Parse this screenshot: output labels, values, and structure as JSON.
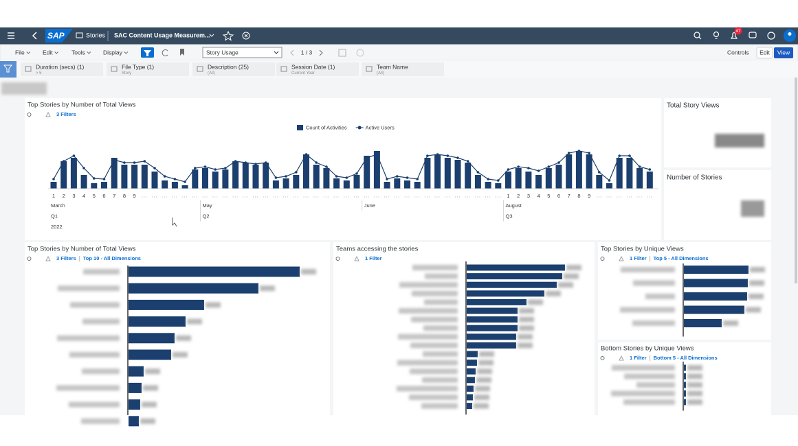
{
  "header": {
    "brand": "SAP",
    "app": "Stories",
    "title": "SAC Content Usage Measurem...",
    "notifications": 47
  },
  "toolbar": {
    "menus": [
      "File",
      "Edit",
      "Tools",
      "Display"
    ],
    "page_select": "Story Usage",
    "page_indicator": "1 / 3",
    "controls": "Controls",
    "edit": "Edit",
    "view": "View"
  },
  "filters": [
    {
      "name": "Duration (secs) (1)",
      "value": "> 5"
    },
    {
      "name": "File Type (1)",
      "value": "Story"
    },
    {
      "name": "Description (25)",
      "value": "(All)"
    },
    {
      "name": "Session Date (1)",
      "value": "Current Year"
    },
    {
      "name": "Team Name",
      "value": "(All)"
    }
  ],
  "kpis": [
    {
      "title": "Total Story Views"
    },
    {
      "title": "Number of Stories"
    }
  ],
  "chart_data": [
    {
      "type": "combo",
      "title": "Top Stories by Number of Total Views",
      "filter_links": [
        "3 Filters"
      ],
      "legend": "top",
      "categories": [
        "1",
        "2",
        "3",
        "4",
        "5",
        "6",
        "7",
        "8",
        "9",
        null,
        null,
        null,
        null,
        null,
        null,
        null,
        null,
        null,
        null,
        null,
        null,
        null,
        null,
        null,
        null,
        null,
        null,
        null,
        null,
        null,
        null,
        null,
        null,
        null,
        null,
        null,
        null,
        null,
        null,
        null,
        null,
        null,
        null,
        null,
        null,
        "1",
        "2",
        "3",
        "4",
        "5",
        "6",
        "7",
        "8",
        "9",
        null,
        null,
        null,
        null,
        null,
        null
      ],
      "months": [
        "March",
        null,
        null,
        null,
        null,
        null,
        null,
        null,
        null,
        null,
        null,
        null,
        null,
        null,
        null,
        "May",
        null,
        null,
        null,
        null,
        null,
        null,
        null,
        null,
        null,
        null,
        null,
        null,
        null,
        null,
        null,
        "June",
        null,
        null,
        null,
        null,
        null,
        null,
        null,
        null,
        null,
        null,
        null,
        null,
        null,
        "August",
        null,
        null,
        null,
        null,
        null,
        null,
        null,
        null,
        null,
        null,
        null,
        null,
        null,
        null
      ],
      "quarters": [
        "Q1",
        null,
        null,
        null,
        null,
        null,
        null,
        null,
        null,
        null,
        null,
        null,
        null,
        null,
        null,
        "Q2",
        null,
        null,
        null,
        null,
        null,
        null,
        null,
        null,
        null,
        null,
        null,
        null,
        null,
        null,
        null,
        null,
        null,
        null,
        null,
        null,
        null,
        null,
        null,
        null,
        null,
        null,
        null,
        null,
        null,
        "Q3",
        null,
        null,
        null,
        null,
        null,
        null,
        null,
        null,
        null,
        null,
        null,
        null,
        null,
        null
      ],
      "years": [
        "2022",
        null,
        null,
        null,
        null,
        null,
        null,
        null,
        null,
        null,
        null,
        null,
        null,
        null,
        null,
        null,
        null,
        null,
        null,
        null,
        null,
        null,
        null,
        null,
        null,
        null,
        null,
        null,
        null,
        null,
        null,
        null,
        null,
        null,
        null,
        null,
        null,
        null,
        null,
        null,
        null,
        null,
        null,
        null,
        null,
        null,
        null,
        null,
        null,
        null,
        null,
        null,
        null,
        null,
        null,
        null,
        null,
        null,
        null,
        null
      ],
      "series": [
        {
          "name": "Count of Activities",
          "type": "bar",
          "color": "#1b3f6e",
          "values": [
            10,
            40,
            45,
            20,
            8,
            10,
            45,
            35,
            35,
            35,
            25,
            12,
            10,
            5,
            28,
            30,
            25,
            28,
            40,
            38,
            35,
            38,
            12,
            15,
            20,
            50,
            35,
            30,
            15,
            12,
            20,
            48,
            55,
            10,
            15,
            12,
            10,
            45,
            50,
            45,
            42,
            38,
            20,
            10,
            8,
            25,
            30,
            25,
            20,
            30,
            35,
            50,
            55,
            50,
            20,
            8,
            45,
            45,
            30,
            25
          ]
        },
        {
          "name": "Active Users",
          "type": "line",
          "color": "#1b3f6e",
          "values": [
            14,
            40,
            48,
            30,
            15,
            14,
            42,
            38,
            38,
            40,
            30,
            18,
            14,
            10,
            30,
            32,
            28,
            30,
            40,
            38,
            36,
            38,
            16,
            18,
            24,
            50,
            38,
            32,
            18,
            16,
            22,
            45,
            50,
            14,
            18,
            16,
            14,
            48,
            50,
            48,
            45,
            40,
            24,
            14,
            12,
            28,
            32,
            30,
            26,
            32,
            38,
            52,
            55,
            52,
            24,
            12,
            48,
            48,
            32,
            28
          ]
        }
      ]
    },
    {
      "type": "bar",
      "orientation": "horizontal",
      "title": "Top Stories by Number of Total Views",
      "filter_links": [
        "3 Filters",
        "Top 10 - All Dimensions"
      ],
      "color": "#1b3f6e",
      "values": [
        249,
        189,
        110,
        83,
        67,
        62,
        22,
        19,
        17,
        15
      ]
    },
    {
      "type": "bar",
      "orientation": "horizontal",
      "title": "Teams accessing the stories",
      "filter_links": [
        "1 Filter"
      ],
      "color": "#1b3f6e",
      "values": [
        143,
        139,
        131,
        113,
        87,
        74,
        74,
        74,
        72,
        72,
        16,
        15,
        13,
        12,
        10,
        9,
        8
      ]
    },
    {
      "type": "bar",
      "orientation": "horizontal",
      "title": "Top Stories by Unique Views",
      "filter_links": [
        "1 Filter",
        "Top 5 - All Dimensions"
      ],
      "color": "#1b3f6e",
      "values": [
        94,
        93,
        92,
        88,
        55
      ]
    },
    {
      "type": "bar",
      "orientation": "horizontal",
      "title": "Bottom Stories by Unique Views",
      "filter_links": [
        "1 Filter",
        "Bottom 5 - All Dimensions"
      ],
      "color": "#1b3f6e",
      "values": [
        3,
        3,
        3,
        3,
        3
      ]
    }
  ]
}
